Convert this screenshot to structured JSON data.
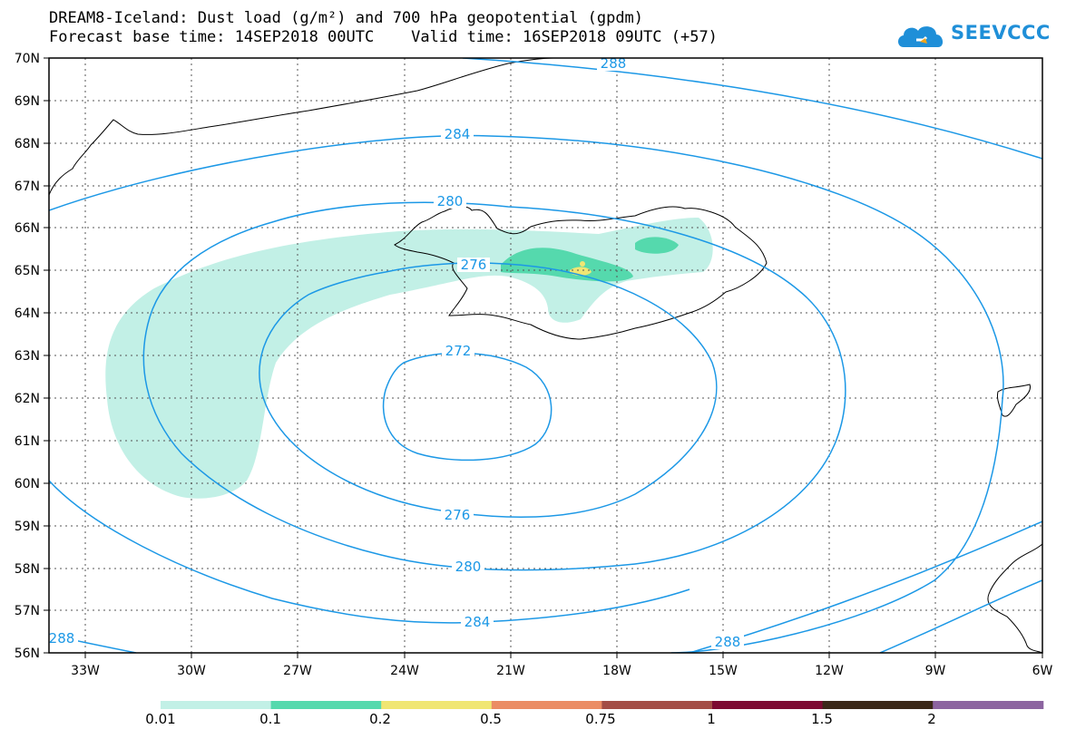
{
  "header": {
    "title_line1": "DREAM8-Iceland: Dust load (g/m²) and 700 hPa geopotential (gpdm)",
    "title_line2": "Forecast base time: 14SEP2018 00UTC    Valid time: 16SEP2018 09UTC (+57)"
  },
  "logo": {
    "text": "SEEVCCC",
    "icon": "cloud-logo-icon"
  },
  "map": {
    "lat_labels": [
      "70N",
      "69N",
      "68N",
      "67N",
      "66N",
      "65N",
      "64N",
      "63N",
      "62N",
      "61N",
      "60N",
      "59N",
      "58N",
      "57N",
      "56N"
    ],
    "lon_labels": [
      "33W",
      "30W",
      "27W",
      "24W",
      "21W",
      "18W",
      "15W",
      "12W",
      "9W",
      "6W"
    ],
    "contour_labels": {
      "c288_top": "288",
      "c284_top": "284",
      "c280_top": "280",
      "c276_top": "276",
      "c272": "272",
      "c276_bottom": "276",
      "c280_bottom": "280",
      "c284_bottom": "284",
      "c288_bottom_left": "288",
      "c288_bottom_right": "288"
    },
    "colors": {
      "contour": "#1c98e6",
      "dust_001": "#c2f0e6",
      "dust_01": "#55d9ad",
      "dust_02": "#f0e673"
    }
  },
  "colorbar": {
    "labels": [
      "0.01",
      "0.1",
      "0.2",
      "0.5",
      "0.75",
      "1",
      "1.5",
      "2"
    ],
    "colors": [
      "#c2f0e6",
      "#55d9ad",
      "#f0e673",
      "#eb8c64",
      "#a34d46",
      "#7d0a32",
      "#3b2818",
      "#8c64a0"
    ]
  }
}
